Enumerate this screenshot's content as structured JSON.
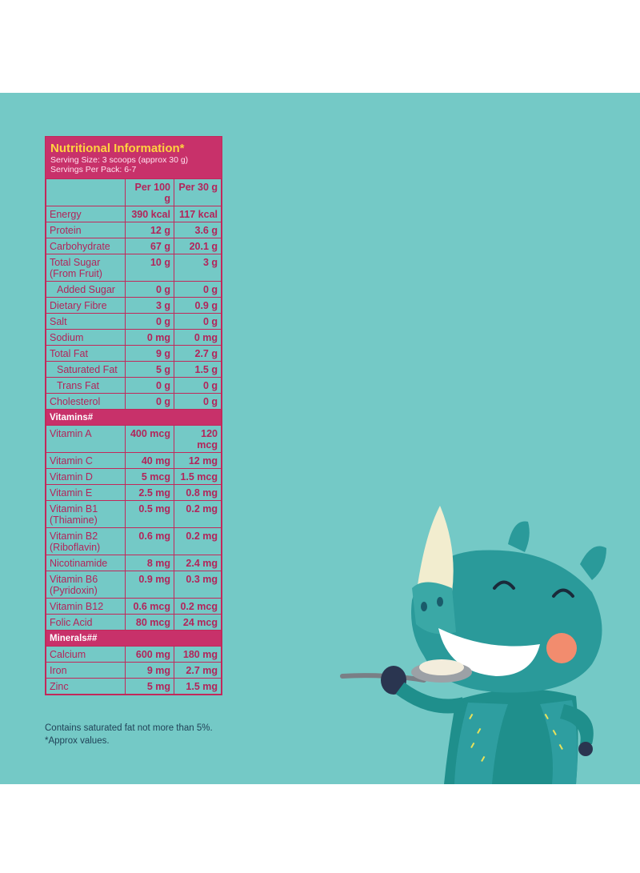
{
  "nutrition": {
    "title": "Nutritional Information*",
    "serving_size": "Serving Size: 3 scoops (approx 30 g)",
    "servings_per_pack": "Servings Per Pack: 6-7",
    "columns": [
      "Per 100 g",
      "Per 30 g"
    ],
    "rows": [
      {
        "label": "Energy",
        "v100": "390 kcal",
        "v30": "117 kcal"
      },
      {
        "label": "Protein",
        "v100": "12 g",
        "v30": "3.6 g"
      },
      {
        "label": "Carbohydrate",
        "v100": "67 g",
        "v30": "20.1 g"
      },
      {
        "label": "Total Sugar (From Fruit)",
        "v100": "10 g",
        "v30": "3 g"
      },
      {
        "label": "Added Sugar",
        "v100": "0 g",
        "v30": "0 g"
      },
      {
        "label": "Dietary Fibre",
        "v100": "3 g",
        "v30": "0.9 g"
      },
      {
        "label": "Salt",
        "v100": "0 g",
        "v30": "0 g"
      },
      {
        "label": "Sodium",
        "v100": "0 mg",
        "v30": "0 mg"
      },
      {
        "label": "Total Fat",
        "v100": "9 g",
        "v30": "2.7 g"
      },
      {
        "label": "Saturated Fat",
        "v100": "5 g",
        "v30": "1.5 g"
      },
      {
        "label": "Trans Fat",
        "v100": "0 g",
        "v30": "0 g"
      },
      {
        "label": "Cholesterol",
        "v100": "0 g",
        "v30": "0 g"
      }
    ],
    "vitamins_label": "Vitamins#",
    "vitamins": [
      {
        "label": "Vitamin A",
        "v100": "400 mcg",
        "v30": "120 mcg"
      },
      {
        "label": "Vitamin C",
        "v100": "40 mg",
        "v30": "12 mg"
      },
      {
        "label": "Vitamin D",
        "v100": "5 mcg",
        "v30": "1.5 mcg"
      },
      {
        "label": "Vitamin E",
        "v100": "2.5 mg",
        "v30": "0.8 mg"
      },
      {
        "label": "Vitamin B1 (Thiamine)",
        "v100": "0.5 mg",
        "v30": "0.2 mg"
      },
      {
        "label": "Vitamin B2 (Riboflavin)",
        "v100": "0.6 mg",
        "v30": "0.2 mg"
      },
      {
        "label": "Nicotinamide",
        "v100": "8 mg",
        "v30": "2.4 mg"
      },
      {
        "label": "Vitamin B6 (Pyridoxin)",
        "v100": "0.9 mg",
        "v30": "0.3 mg"
      },
      {
        "label": "Vitamin B12",
        "v100": "0.6 mcg",
        "v30": "0.2 mcg"
      },
      {
        "label": "Folic Acid",
        "v100": "80 mcg",
        "v30": "24 mcg"
      }
    ],
    "minerals_label": "Minerals##",
    "minerals": [
      {
        "label": "Calcium",
        "v100": "600 mg",
        "v30": "180 mg"
      },
      {
        "label": "Iron",
        "v100": "9 mg",
        "v30": "2.7 mg"
      },
      {
        "label": "Zinc",
        "v100": "5 mg",
        "v30": "1.5 mg"
      }
    ]
  },
  "footnotes": {
    "line1": "Contains saturated fat not more than 5%.",
    "line2": "*Approx values."
  },
  "colors": {
    "background": "#74c9c6",
    "table_accent": "#c8316a",
    "title_yellow": "#ffd23f"
  },
  "illustration": "rhino-eating-cereal-icon"
}
